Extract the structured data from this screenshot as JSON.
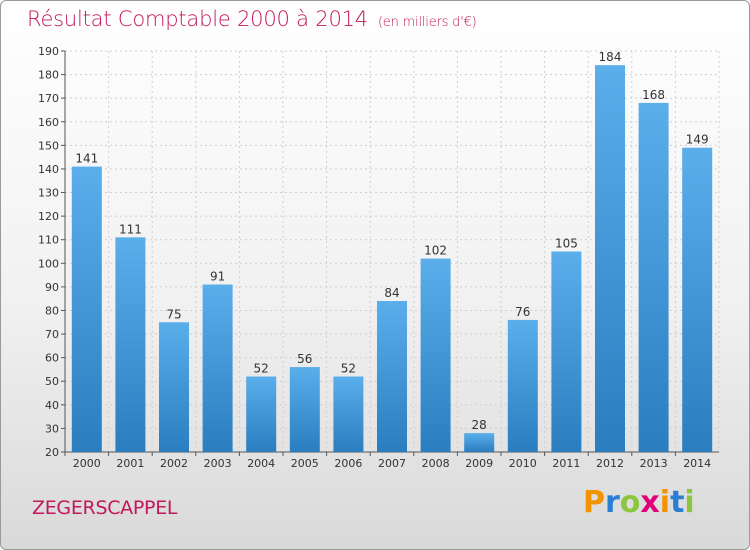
{
  "title": "Résultat Comptable 2000 à 2014",
  "title_unit": "(en milliers d'€)",
  "commune": "ZEGERSCAPPEL",
  "logo": {
    "text": "Proxiti",
    "letters": [
      {
        "ch": "P",
        "color": "#f29400"
      },
      {
        "ch": "r",
        "color": "#2a7fd4"
      },
      {
        "ch": "o",
        "color": "#8cc63f"
      },
      {
        "ch": "x",
        "color": "#e2007a"
      },
      {
        "ch": "i",
        "color": "#f29400"
      },
      {
        "ch": "t",
        "color": "#2a7fd4"
      },
      {
        "ch": "i",
        "color": "#8cc63f"
      }
    ]
  },
  "colors": {
    "bar_top": "#5aaeea",
    "bar_bottom": "#2a7ec0",
    "grid": "#cfcfcf",
    "accent": "#c2185b"
  },
  "chart_data": {
    "type": "bar",
    "categories": [
      "2000",
      "2001",
      "2002",
      "2003",
      "2004",
      "2005",
      "2006",
      "2007",
      "2008",
      "2009",
      "2010",
      "2011",
      "2012",
      "2013",
      "2014"
    ],
    "values": [
      141,
      111,
      75,
      91,
      52,
      56,
      52,
      84,
      102,
      28,
      76,
      105,
      184,
      168,
      149
    ],
    "ylim": [
      20,
      190
    ],
    "yticks": [
      20,
      30,
      40,
      50,
      60,
      70,
      80,
      90,
      100,
      110,
      120,
      130,
      140,
      150,
      160,
      170,
      180,
      190
    ],
    "data_labels": true,
    "grid": true,
    "xlabel": "",
    "ylabel": ""
  }
}
